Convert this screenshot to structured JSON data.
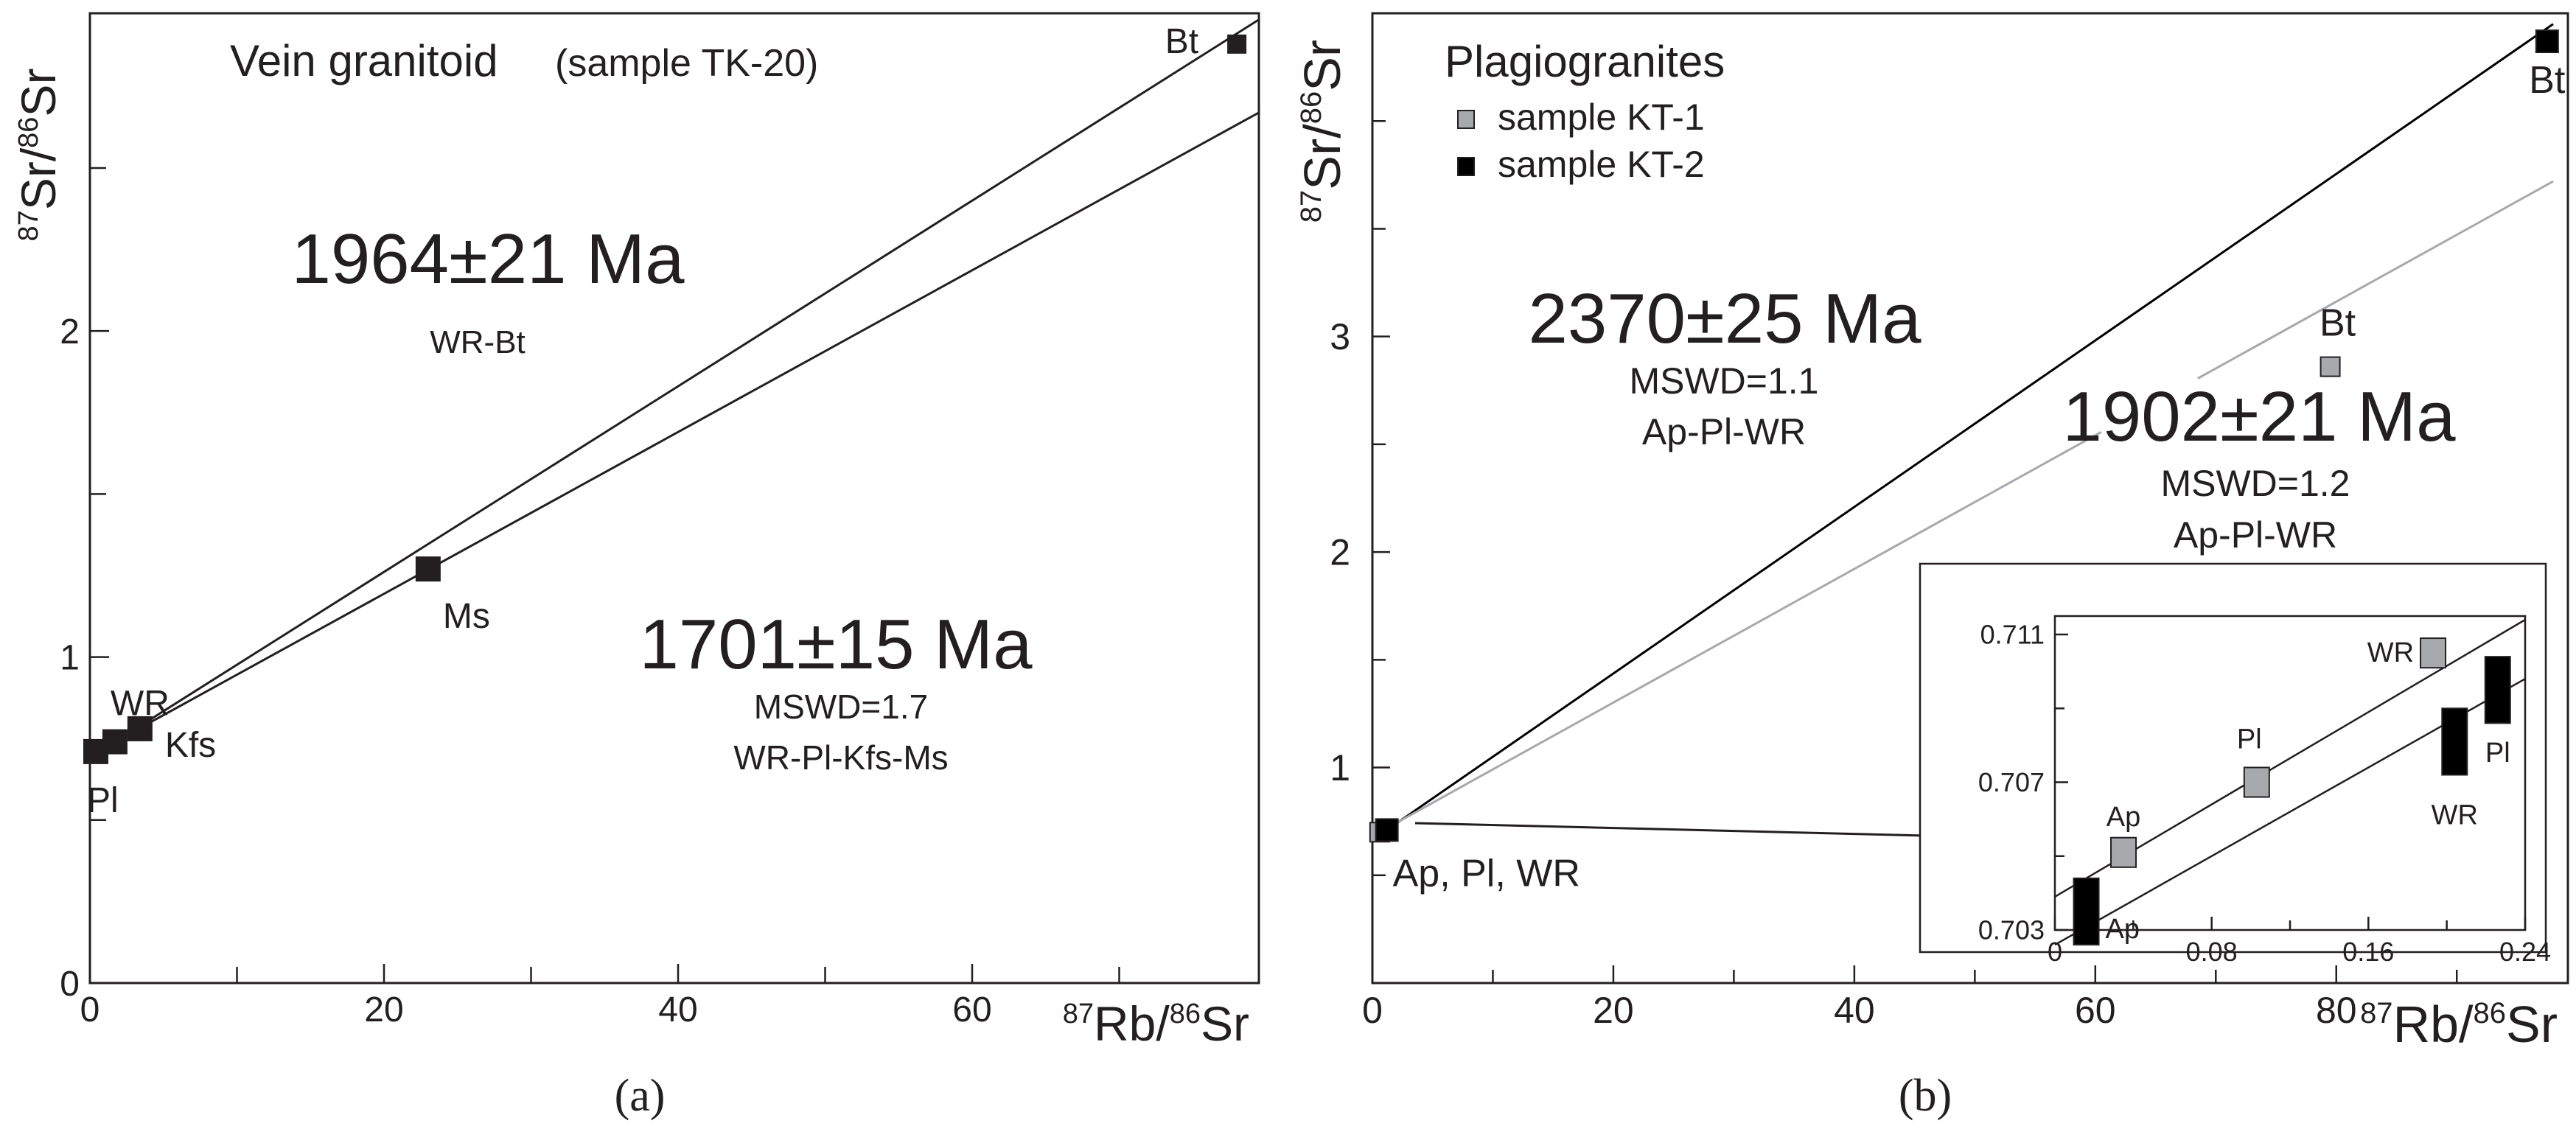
{
  "chart_data": [
    {
      "type": "scatter",
      "panel_label": "(a)",
      "title": "Vein granitoid",
      "subtitle": "(sample TK-20)",
      "xlabel": "87Rb/86Sr",
      "ylabel": "87Sr/86Sr",
      "xlim": [
        0,
        80
      ],
      "ylim": [
        0,
        2.9
      ],
      "x_ticks": [
        0,
        20,
        40,
        60
      ],
      "x_ticks_minor": [
        10,
        30,
        50,
        70
      ],
      "y_ticks": [
        0,
        1,
        2
      ],
      "y_ticks_minor": [
        0.5,
        1.5,
        2.5
      ],
      "points": [
        {
          "label": "Pl",
          "x": 0.4,
          "y": 0.71
        },
        {
          "label": "WR",
          "x": 1.7,
          "y": 0.74
        },
        {
          "label": "Kfs",
          "x": 3.4,
          "y": 0.78
        },
        {
          "label": "Ms",
          "x": 23.0,
          "y": 1.27
        },
        {
          "label": "Bt",
          "x": 78.0,
          "y": 2.88
        }
      ],
      "isochrons": [
        {
          "age": "1964±21 Ma",
          "mswd": "",
          "points": "WR-Bt",
          "x": [
            1.7,
            80
          ],
          "y": [
            0.74,
            2.955
          ]
        },
        {
          "age": "1701±15 Ma",
          "mswd": "MSWD=1.7",
          "points": "WR-Pl-Kfs-Ms",
          "x": [
            1.7,
            80
          ],
          "y": [
            0.74,
            2.67
          ]
        }
      ]
    },
    {
      "type": "scatter",
      "panel_label": "(b)",
      "title": "Plagiogranites",
      "xlabel": "87Rb/86Sr",
      "ylabel": "87Sr/86Sr",
      "xlim": [
        0,
        98
      ],
      "ylim": [
        0,
        4.5
      ],
      "x_ticks": [
        0,
        20,
        40,
        60,
        80
      ],
      "x_ticks_minor": [
        10,
        30,
        50,
        70,
        90
      ],
      "y_ticks": [
        1,
        2,
        3
      ],
      "y_ticks_minor": [
        0.5,
        1.5,
        2.5,
        3.5,
        4
      ],
      "series": [
        {
          "name": "sample KT-1",
          "color": "#a7a9ac",
          "points": [
            {
              "label": "",
              "x": 0.6,
              "y": 0.7
            },
            {
              "label": "Bt",
              "x": 79.5,
              "y": 2.86
            }
          ]
        },
        {
          "name": "sample KT-2",
          "color": "#000000",
          "points": [
            {
              "label": "Ap, Pl, WR",
              "x": 1.2,
              "y": 0.71
            },
            {
              "label": "Bt",
              "x": 97.5,
              "y": 4.37
            }
          ]
        }
      ],
      "isochrons": [
        {
          "age": "2370±25 Ma",
          "mswd": "MSWD=1.1",
          "points": "Ap-Pl-WR",
          "color": "#000000",
          "x": [
            1.2,
            98
          ],
          "y": [
            0.71,
            4.45
          ]
        },
        {
          "age": "1902±21 Ma",
          "mswd": "MSWD=1.2",
          "points": "Ap-Pl-WR",
          "color": "#a7a9ac",
          "x": [
            0.6,
            98
          ],
          "y": [
            0.7,
            3.72
          ]
        }
      ],
      "inset": {
        "xlim": [
          0,
          0.24
        ],
        "ylim": [
          0.703,
          0.7115
        ],
        "x_ticks": [
          0,
          0.08,
          0.16,
          0.24
        ],
        "x_tick_labels": [
          "0",
          "0.08",
          "0.16",
          "0.24"
        ],
        "x_ticks_minor": [
          0.04,
          0.12,
          0.2
        ],
        "y_ticks": [
          0.703,
          0.707,
          0.711
        ],
        "y_tick_labels": [
          "0.703",
          "0.707",
          "0.711"
        ],
        "y_ticks_minor": [
          0.705,
          0.709
        ],
        "lines": [
          {
            "series": "sample KT-1",
            "x": [
              0,
              0.24
            ],
            "y": [
              0.7039,
              0.7114
            ]
          },
          {
            "series": "sample KT-2",
            "x": [
              0,
              0.24
            ],
            "y": [
              0.7026,
              0.7098
            ]
          }
        ],
        "points": [
          {
            "series": "sample KT-1",
            "label": "Ap",
            "x": 0.035,
            "y": 0.7051,
            "err": 0.0004
          },
          {
            "series": "sample KT-1",
            "label": "Pl",
            "x": 0.103,
            "y": 0.707,
            "err": 0.0004
          },
          {
            "series": "sample KT-1",
            "label": "WR",
            "x": 0.193,
            "y": 0.7105,
            "err": 0.0004
          },
          {
            "series": "sample KT-2",
            "label": "Ap",
            "x": 0.016,
            "y": 0.7035,
            "err": 0.0009
          },
          {
            "series": "sample KT-2",
            "label": "WR",
            "x": 0.204,
            "y": 0.7081,
            "err": 0.0009
          },
          {
            "series": "sample KT-2",
            "label": "Pl",
            "x": 0.226,
            "y": 0.7095,
            "err": 0.0009
          }
        ]
      }
    }
  ]
}
